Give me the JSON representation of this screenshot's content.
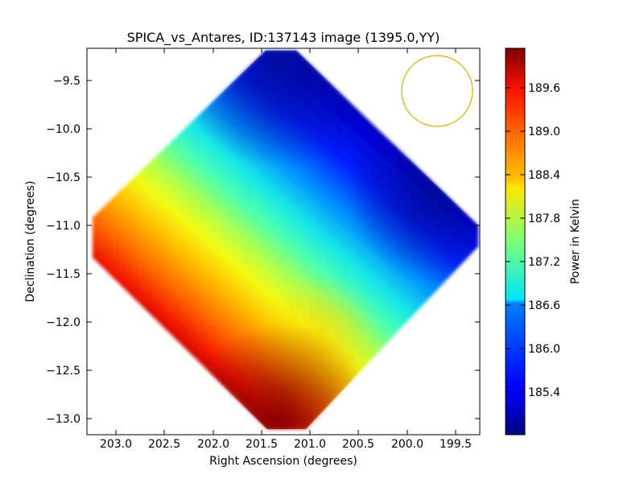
{
  "chart_data": {
    "type": "heatmap",
    "title": "SPICA_vs_Antares, ID:137143 image (1395.0,YY)",
    "xlabel": "Right Ascension (degrees)",
    "ylabel": "Declination (degrees)",
    "xlim": [
      203.3,
      199.25
    ],
    "ylim": [
      -13.15,
      -9.2
    ],
    "xticks": [
      "203.0",
      "202.5",
      "202.0",
      "201.5",
      "201.0",
      "200.5",
      "200.0",
      "199.5"
    ],
    "yticks": [
      "−9.5",
      "−10.0",
      "−10.5",
      "−11.0",
      "−11.5",
      "−12.0",
      "−12.5",
      "−13.0"
    ],
    "colorbar": {
      "label": "Power in Kelvin",
      "range": [
        184.9,
        190.2
      ],
      "ticks": [
        "185.4",
        "186.0",
        "186.6",
        "187.2",
        "187.8",
        "188.4",
        "189.0",
        "189.6"
      ],
      "colormap": "jet"
    },
    "field_shape": "diamond",
    "field_center": [
      201.28,
      -11.17
    ],
    "field_half_width_deg": 2.05,
    "field_corners": {
      "top": [
        201.28,
        -9.22
      ],
      "right": [
        199.25,
        -11.15
      ],
      "bottom": [
        201.28,
        -13.1
      ],
      "left": [
        203.3,
        -11.2
      ]
    },
    "value_samples": [
      {
        "ra": 201.3,
        "dec": -9.4,
        "kelvin": 185.1
      },
      {
        "ra": 200.0,
        "dec": -10.5,
        "kelvin": 185.2
      },
      {
        "ra": 199.5,
        "dec": -11.0,
        "kelvin": 185.5
      },
      {
        "ra": 202.2,
        "dec": -10.3,
        "kelvin": 186.9
      },
      {
        "ra": 201.3,
        "dec": -11.1,
        "kelvin": 187.0
      },
      {
        "ra": 200.4,
        "dec": -11.8,
        "kelvin": 187.3
      },
      {
        "ra": 202.6,
        "dec": -11.1,
        "kelvin": 188.0
      },
      {
        "ra": 201.5,
        "dec": -11.8,
        "kelvin": 188.1
      },
      {
        "ra": 201.2,
        "dec": -12.5,
        "kelvin": 189.0
      },
      {
        "ra": 202.7,
        "dec": -11.8,
        "kelvin": 189.4
      },
      {
        "ra": 201.3,
        "dec": -13.0,
        "kelvin": 190.0
      }
    ],
    "beam_marker": {
      "ra": 199.73,
      "dec": -9.6,
      "radius_deg": 0.37,
      "color": "#c8b400"
    },
    "grid": false
  }
}
